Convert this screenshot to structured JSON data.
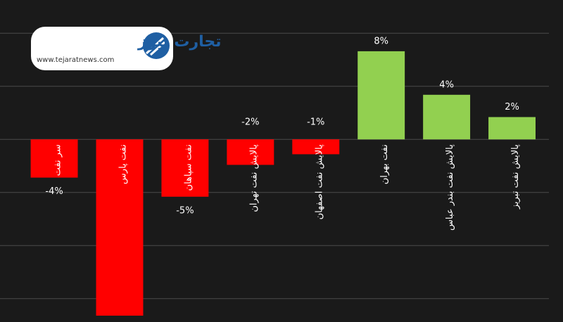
{
  "logo": {
    "name": "تجارت نیوز",
    "url": "www.tejaratnews.com"
  },
  "chart_data": {
    "type": "bar",
    "categories": [
      "سر نفت",
      "نفت پارس",
      "نفت سپاهان",
      "پالایش نفت تهران",
      "پالایش نفت اصفهان",
      "نفت بهران",
      "پالایش نفت بندر عباس",
      "پالایش نفت تبریز"
    ],
    "values": [
      -3.6,
      -16.6,
      -5.4,
      -2.4,
      -1.4,
      8.3,
      4.2,
      2.1
    ],
    "value_labels": [
      "-4%",
      null,
      "-5%",
      "-2%",
      "-1%",
      "8%",
      "4%",
      "2%"
    ],
    "colors": [
      "#ff0000",
      "#ff0000",
      "#ff0000",
      "#ff0000",
      "#ff0000",
      "#92d050",
      "#92d050",
      "#92d050"
    ],
    "ylim": [
      -17,
      12
    ],
    "yticks": [
      -15,
      -10,
      -5,
      0,
      5,
      10
    ],
    "grid": true
  }
}
